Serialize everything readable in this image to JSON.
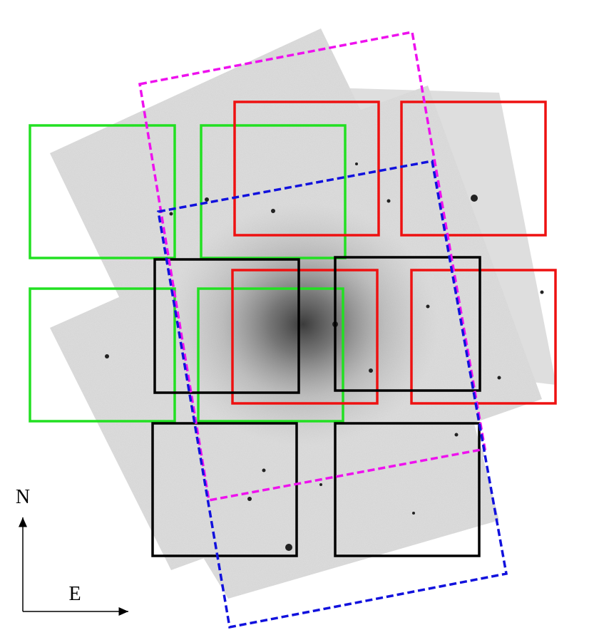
{
  "compass": {
    "north": "N",
    "east": "E"
  }
}
